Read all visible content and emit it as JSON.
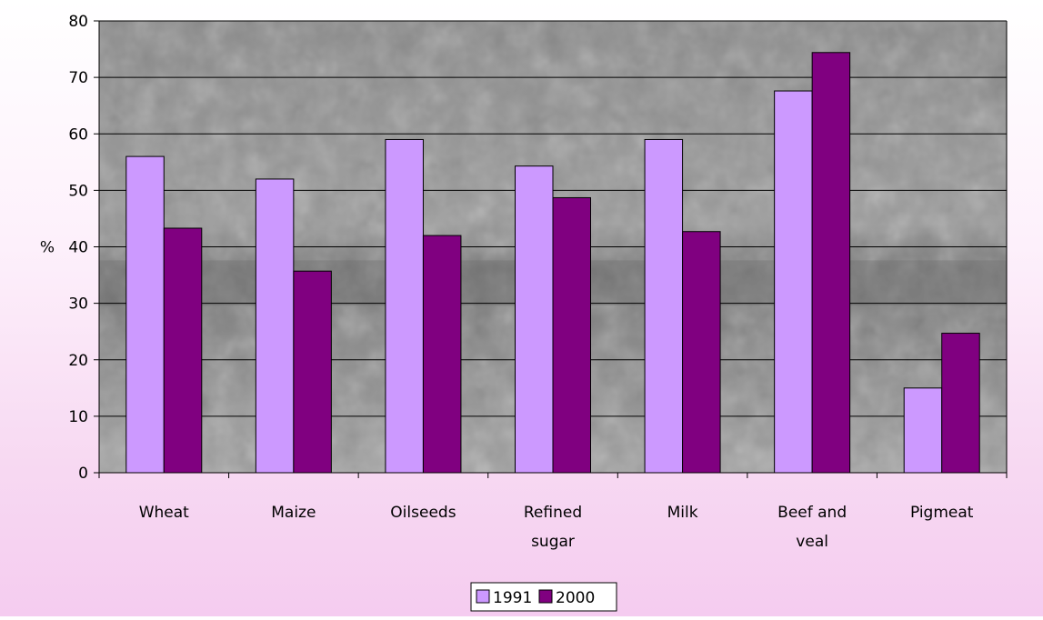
{
  "chart_data": {
    "type": "bar",
    "categories": [
      [
        "Wheat"
      ],
      [
        "Maize"
      ],
      [
        "Oilseeds"
      ],
      [
        "Refined",
        "sugar"
      ],
      [
        "Milk"
      ],
      [
        "Beef and",
        "veal"
      ],
      [
        "Pigmeat"
      ]
    ],
    "series": [
      {
        "name": "1991",
        "values": [
          56,
          52,
          59,
          54.3,
          59,
          67.6,
          15
        ],
        "color": "#cc99ff"
      },
      {
        "name": "2000",
        "values": [
          43.3,
          35.7,
          42,
          48.7,
          42.7,
          74.4,
          24.7
        ],
        "color": "#800080"
      }
    ],
    "ylabel": "%",
    "ylim": [
      0,
      80
    ],
    "yticks": [
      0,
      10,
      20,
      30,
      40,
      50,
      60,
      70,
      80
    ],
    "grid": true,
    "legend": "bottom",
    "plot_background": "grayscale photo of trees"
  }
}
